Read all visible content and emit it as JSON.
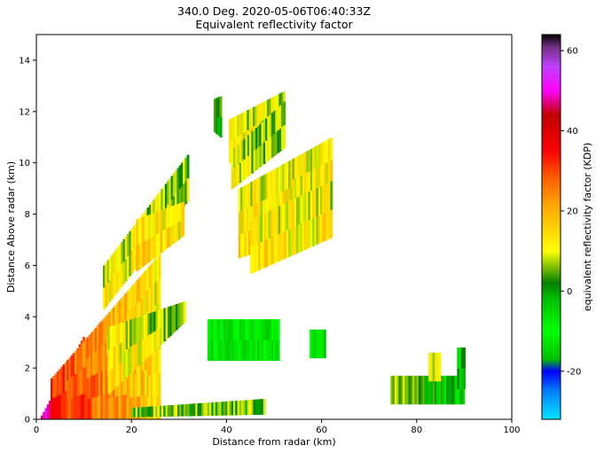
{
  "chart_data": {
    "type": "heatmap",
    "title": "340.0 Deg. 2020-05-06T06:40:33Z",
    "subtitle": "Equivalent reflectivity factor",
    "xlabel": "Distance from radar (km)",
    "ylabel": "Distance Above radar  (km)",
    "xlim": [
      0,
      100
    ],
    "ylim": [
      0,
      15
    ],
    "xticks": [
      "0",
      "20",
      "40",
      "60",
      "80",
      "100"
    ],
    "yticks": [
      "0",
      "2",
      "4",
      "6",
      "8",
      "10",
      "12",
      "14"
    ],
    "colorbar": {
      "label": "equivalent reflectivity factor (KDP)",
      "range": [
        -32,
        64
      ],
      "ticks": [
        "-20",
        "0",
        "20",
        "40",
        "60"
      ],
      "colormap": [
        {
          "v": -32,
          "c": "#00e5ff"
        },
        {
          "v": -25,
          "c": "#0080ff"
        },
        {
          "v": -20,
          "c": "#0000ff"
        },
        {
          "v": -17,
          "c": "#00c000"
        },
        {
          "v": -10,
          "c": "#00ff00"
        },
        {
          "v": -2,
          "c": "#00c000"
        },
        {
          "v": 2,
          "c": "#008000"
        },
        {
          "v": 6,
          "c": "#80c000"
        },
        {
          "v": 10,
          "c": "#ffff00"
        },
        {
          "v": 16,
          "c": "#ffd000"
        },
        {
          "v": 22,
          "c": "#ffa000"
        },
        {
          "v": 28,
          "c": "#ff6000"
        },
        {
          "v": 35,
          "c": "#ff0000"
        },
        {
          "v": 44,
          "c": "#c00000"
        },
        {
          "v": 50,
          "c": "#ff00ff"
        },
        {
          "v": 56,
          "c": "#c040ff"
        },
        {
          "v": 61,
          "c": "#703080"
        },
        {
          "v": 64,
          "c": "#000000"
        }
      ]
    },
    "regions": [
      {
        "name": "near-radar-core",
        "x": [
          0.5,
          10
        ],
        "bottom": [
          0,
          0
        ],
        "top": [
          0,
          3.3
        ],
        "dbz": [
          48,
          36
        ]
      },
      {
        "name": "low-level-precip",
        "x": [
          3,
          26
        ],
        "bottom": [
          0,
          0
        ],
        "top": [
          1.6,
          6.5
        ],
        "dbz": [
          35,
          14
        ]
      },
      {
        "name": "rising-band-1",
        "x": [
          14,
          32
        ],
        "bottom": [
          4.3,
          8.6
        ],
        "top": [
          6.0,
          10.4
        ],
        "dbz": [
          12,
          8
        ]
      },
      {
        "name": "rising-band-2",
        "x": [
          21,
          31
        ],
        "bottom": [
          5.8,
          7.2
        ],
        "top": [
          7.8,
          8.5
        ],
        "dbz": [
          18,
          12
        ]
      },
      {
        "name": "mid-band",
        "x": [
          15,
          31
        ],
        "bottom": [
          1.0,
          3.8
        ],
        "top": [
          3.6,
          4.6
        ],
        "dbz": [
          14,
          6
        ]
      },
      {
        "name": "surface-strip",
        "x": [
          20,
          48
        ],
        "bottom": [
          0.1,
          0.2
        ],
        "top": [
          0.45,
          0.8
        ],
        "dbz": [
          6,
          4
        ]
      },
      {
        "name": "upper-band",
        "x": [
          40.5,
          52
        ],
        "bottom": [
          10.0,
          11.6
        ],
        "top": [
          11.7,
          12.8
        ],
        "dbz": [
          14,
          6
        ]
      },
      {
        "name": "upper-band-lower",
        "x": [
          41,
          52
        ],
        "bottom": [
          9.0,
          10.6
        ],
        "top": [
          10.5,
          12.4
        ],
        "dbz": [
          10,
          6
        ]
      },
      {
        "name": "middle-bright-band",
        "x": [
          42.5,
          62
        ],
        "bottom": [
          6.3,
          7.5
        ],
        "top": [
          9.0,
          11.0
        ],
        "dbz": [
          14,
          14
        ]
      },
      {
        "name": "middle-lower-band",
        "x": [
          45,
          62
        ],
        "bottom": [
          5.7,
          7.1
        ],
        "top": [
          7.8,
          9.3
        ],
        "dbz": [
          14,
          12
        ]
      },
      {
        "name": "isolated-column",
        "x": [
          37.3,
          38.6
        ],
        "bottom": [
          11.2,
          11.0
        ],
        "top": [
          12.5,
          12.6
        ],
        "dbz": [
          4,
          2
        ]
      },
      {
        "name": "low-cells-40-50",
        "x": [
          36,
          51
        ],
        "bottom": [
          2.3,
          2.3
        ],
        "top": [
          3.9,
          3.9
        ],
        "dbz": [
          -8,
          -8
        ]
      },
      {
        "name": "cell-58",
        "x": [
          57.5,
          60.5
        ],
        "bottom": [
          2.4,
          2.4
        ],
        "top": [
          3.5,
          3.5
        ],
        "dbz": [
          -8,
          -8
        ]
      },
      {
        "name": "far-strip",
        "x": [
          74.5,
          90
        ],
        "bottom": [
          0.6,
          0.6
        ],
        "top": [
          1.7,
          1.7
        ],
        "dbz": [
          8,
          -6
        ]
      },
      {
        "name": "far-column-84",
        "x": [
          82.5,
          85
        ],
        "bottom": [
          1.5,
          1.5
        ],
        "top": [
          2.6,
          2.6
        ],
        "dbz": [
          10,
          10
        ]
      },
      {
        "name": "far-column-89",
        "x": [
          88.5,
          90
        ],
        "bottom": [
          1.2,
          1.2
        ],
        "top": [
          2.8,
          2.8
        ],
        "dbz": [
          0,
          0
        ]
      }
    ]
  }
}
